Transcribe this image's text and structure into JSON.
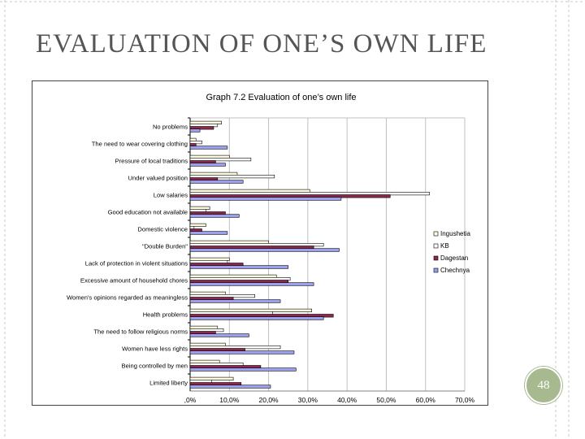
{
  "slide": {
    "title": "EVALUATION OF ONE’S OWN LIFE",
    "page_number": "48"
  },
  "colors": {
    "Ingushetia": "#fffde0",
    "KB": "#ffffff",
    "Dagestan": "#8c2a4c",
    "Chechnya": "#9a9ff0",
    "gridline": "#c0c0c0",
    "badge": "#a6b98f",
    "frame_line": "#c8c8c8"
  },
  "chart_data": {
    "type": "bar",
    "orientation": "horizontal",
    "title": "Graph 7.2 Evaluation of one’s own life",
    "categories": [
      "No problems",
      "The need to wear covering clothing",
      "Pressure of local traditions",
      "Under valued position",
      "Low salaries",
      "Good education  not available",
      "Domestic violence",
      "\"Double Burden\"",
      "Lack of protection in violent situations",
      "Excessive amount of household chores",
      "Women's opinions regarded  as meaningless",
      "Health problems",
      "The need to follow religious norms",
      "Women have less rights",
      "Being controlled by men",
      "Limited liberty"
    ],
    "series": [
      {
        "name": "Ingushetia",
        "values": [
          8,
          1.5,
          10,
          12,
          30.5,
          5,
          4,
          20,
          10,
          22,
          9,
          31,
          7,
          9,
          7.5,
          11
        ]
      },
      {
        "name": "KB",
        "values": [
          7,
          3,
          15.5,
          21.5,
          61,
          4,
          1,
          34,
          9.5,
          25.5,
          16.5,
          21,
          8.5,
          23,
          13.5,
          5.5
        ]
      },
      {
        "name": "Dagestan",
        "values": [
          6,
          1.5,
          6.5,
          7,
          51,
          9,
          3,
          31.5,
          13.5,
          25,
          11,
          36.5,
          6.5,
          14,
          18,
          13
        ]
      },
      {
        "name": "Chechnya",
        "values": [
          2.5,
          9.5,
          9,
          13.5,
          38.5,
          12.5,
          9.5,
          38,
          25,
          31.5,
          23,
          34,
          15,
          26.5,
          27,
          20.5
        ]
      }
    ],
    "x_ticks": [
      ",0%",
      "10,0%",
      "20,0%",
      "30,0%",
      "40,0%",
      "50,0%",
      "60,0%",
      "70,0%"
    ],
    "xlim": [
      0,
      70
    ],
    "grid": true,
    "legend_position": "right",
    "legend": [
      "Ingushetia",
      "KB",
      "Dagestan",
      "Chechnya"
    ]
  }
}
